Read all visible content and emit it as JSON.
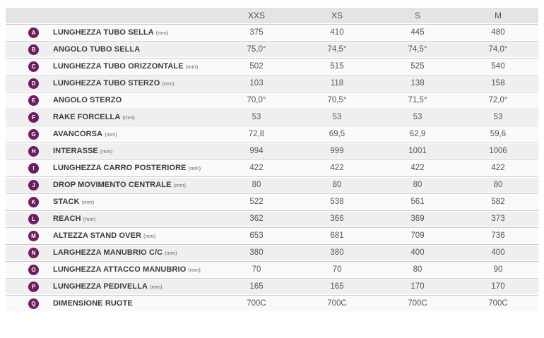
{
  "colors": {
    "badge_background": "#6d1d5d",
    "badge_text": "#ffffff",
    "header_background": "#e4e4e4",
    "row_odd_background": "#f9f9f9",
    "row_even_background": "#efefef",
    "separator": "#c9c9c9",
    "label_text": "#3b3b3b",
    "value_text": "#555555"
  },
  "table": {
    "columns": [
      "XXS",
      "XS",
      "S",
      "M"
    ],
    "rows": [
      {
        "letter": "A",
        "label": "LUNGHEZZA TUBO SELLA",
        "unit": "(mm)",
        "values": [
          "375",
          "410",
          "445",
          "480"
        ]
      },
      {
        "letter": "B",
        "label": "ANGOLO TUBO SELLA",
        "unit": "",
        "values": [
          "75,0°",
          "74,5°",
          "74,5°",
          "74,0°"
        ]
      },
      {
        "letter": "C",
        "label": "LUNGHEZZA TUBO ORIZZONTALE",
        "unit": "(mm)",
        "values": [
          "502",
          "515",
          "525",
          "540"
        ]
      },
      {
        "letter": "D",
        "label": "LUNGHEZZA TUBO STERZO",
        "unit": "(mm)",
        "values": [
          "103",
          "118",
          "138",
          "158"
        ]
      },
      {
        "letter": "E",
        "label": "ANGOLO STERZO",
        "unit": "",
        "values": [
          "70,0°",
          "70,5°",
          "71,5°",
          "72,0°"
        ]
      },
      {
        "letter": "F",
        "label": "RAKE FORCELLA",
        "unit": "(mm)",
        "values": [
          "53",
          "53",
          "53",
          "53"
        ]
      },
      {
        "letter": "G",
        "label": "AVANCORSA",
        "unit": "(mm)",
        "values": [
          "72,8",
          "69,5",
          "62,9",
          "59,6"
        ]
      },
      {
        "letter": "H",
        "label": "INTERASSE",
        "unit": "(mm)",
        "values": [
          "994",
          "999",
          "1001",
          "1006"
        ]
      },
      {
        "letter": "I",
        "label": "LUNGHEZZA CARRO POSTERIORE",
        "unit": "(mm)",
        "values": [
          "422",
          "422",
          "422",
          "422"
        ]
      },
      {
        "letter": "J",
        "label": "DROP MOVIMENTO CENTRALE",
        "unit": "(mm)",
        "values": [
          "80",
          "80",
          "80",
          "80"
        ]
      },
      {
        "letter": "K",
        "label": "STACK",
        "unit": "(mm)",
        "values": [
          "522",
          "538",
          "561",
          "582"
        ]
      },
      {
        "letter": "L",
        "label": "REACH",
        "unit": "(mm)",
        "values": [
          "362",
          "366",
          "369",
          "373"
        ]
      },
      {
        "letter": "M",
        "label": "ALTEZZA STAND OVER",
        "unit": "(mm)",
        "values": [
          "653",
          "681",
          "709",
          "736"
        ]
      },
      {
        "letter": "N",
        "label": "LARGHEZZA MANUBRIO C/C",
        "unit": "(mm)",
        "values": [
          "380",
          "380",
          "400",
          "400"
        ]
      },
      {
        "letter": "O",
        "label": "LUNGHEZZA ATTACCO MANUBRIO",
        "unit": "(mm)",
        "values": [
          "70",
          "70",
          "80",
          "90"
        ]
      },
      {
        "letter": "P",
        "label": "LUNGHEZZA PEDIVELLA",
        "unit": "(mm)",
        "values": [
          "165",
          "165",
          "170",
          "170"
        ]
      },
      {
        "letter": "Q",
        "label": "DIMENSIONE RUOTE",
        "unit": "",
        "values": [
          "700C",
          "700C",
          "700C",
          "700C"
        ]
      }
    ]
  }
}
